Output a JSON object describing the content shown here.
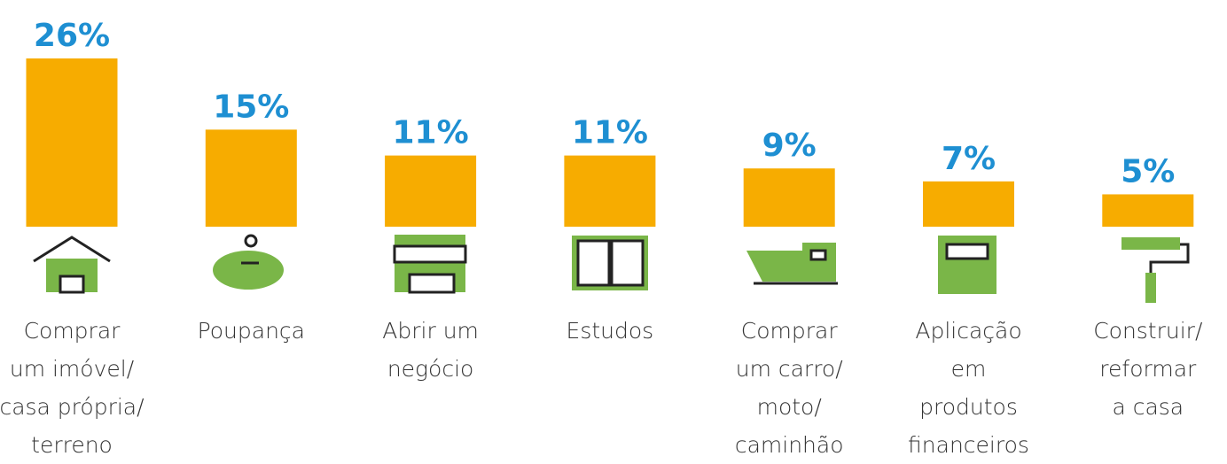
{
  "chart_data": {
    "type": "bar",
    "categories": [
      "Comprar\num imóvel/\ncasa própria/\nterreno",
      "Poupança",
      "Abrir um\nnegócio",
      "Estudos",
      "Comprar\num carro/\nmoto/\ncaminhão",
      "Aplicação\nem\nprodutos\nfinanceiros",
      "Construir/\nreformar\na casa"
    ],
    "values": [
      26,
      15,
      11,
      11,
      9,
      7,
      5
    ],
    "value_labels": [
      "26%",
      "15%",
      "11%",
      "11%",
      "9%",
      "7%",
      "5%"
    ],
    "color": "#f7ac00"
  }
}
